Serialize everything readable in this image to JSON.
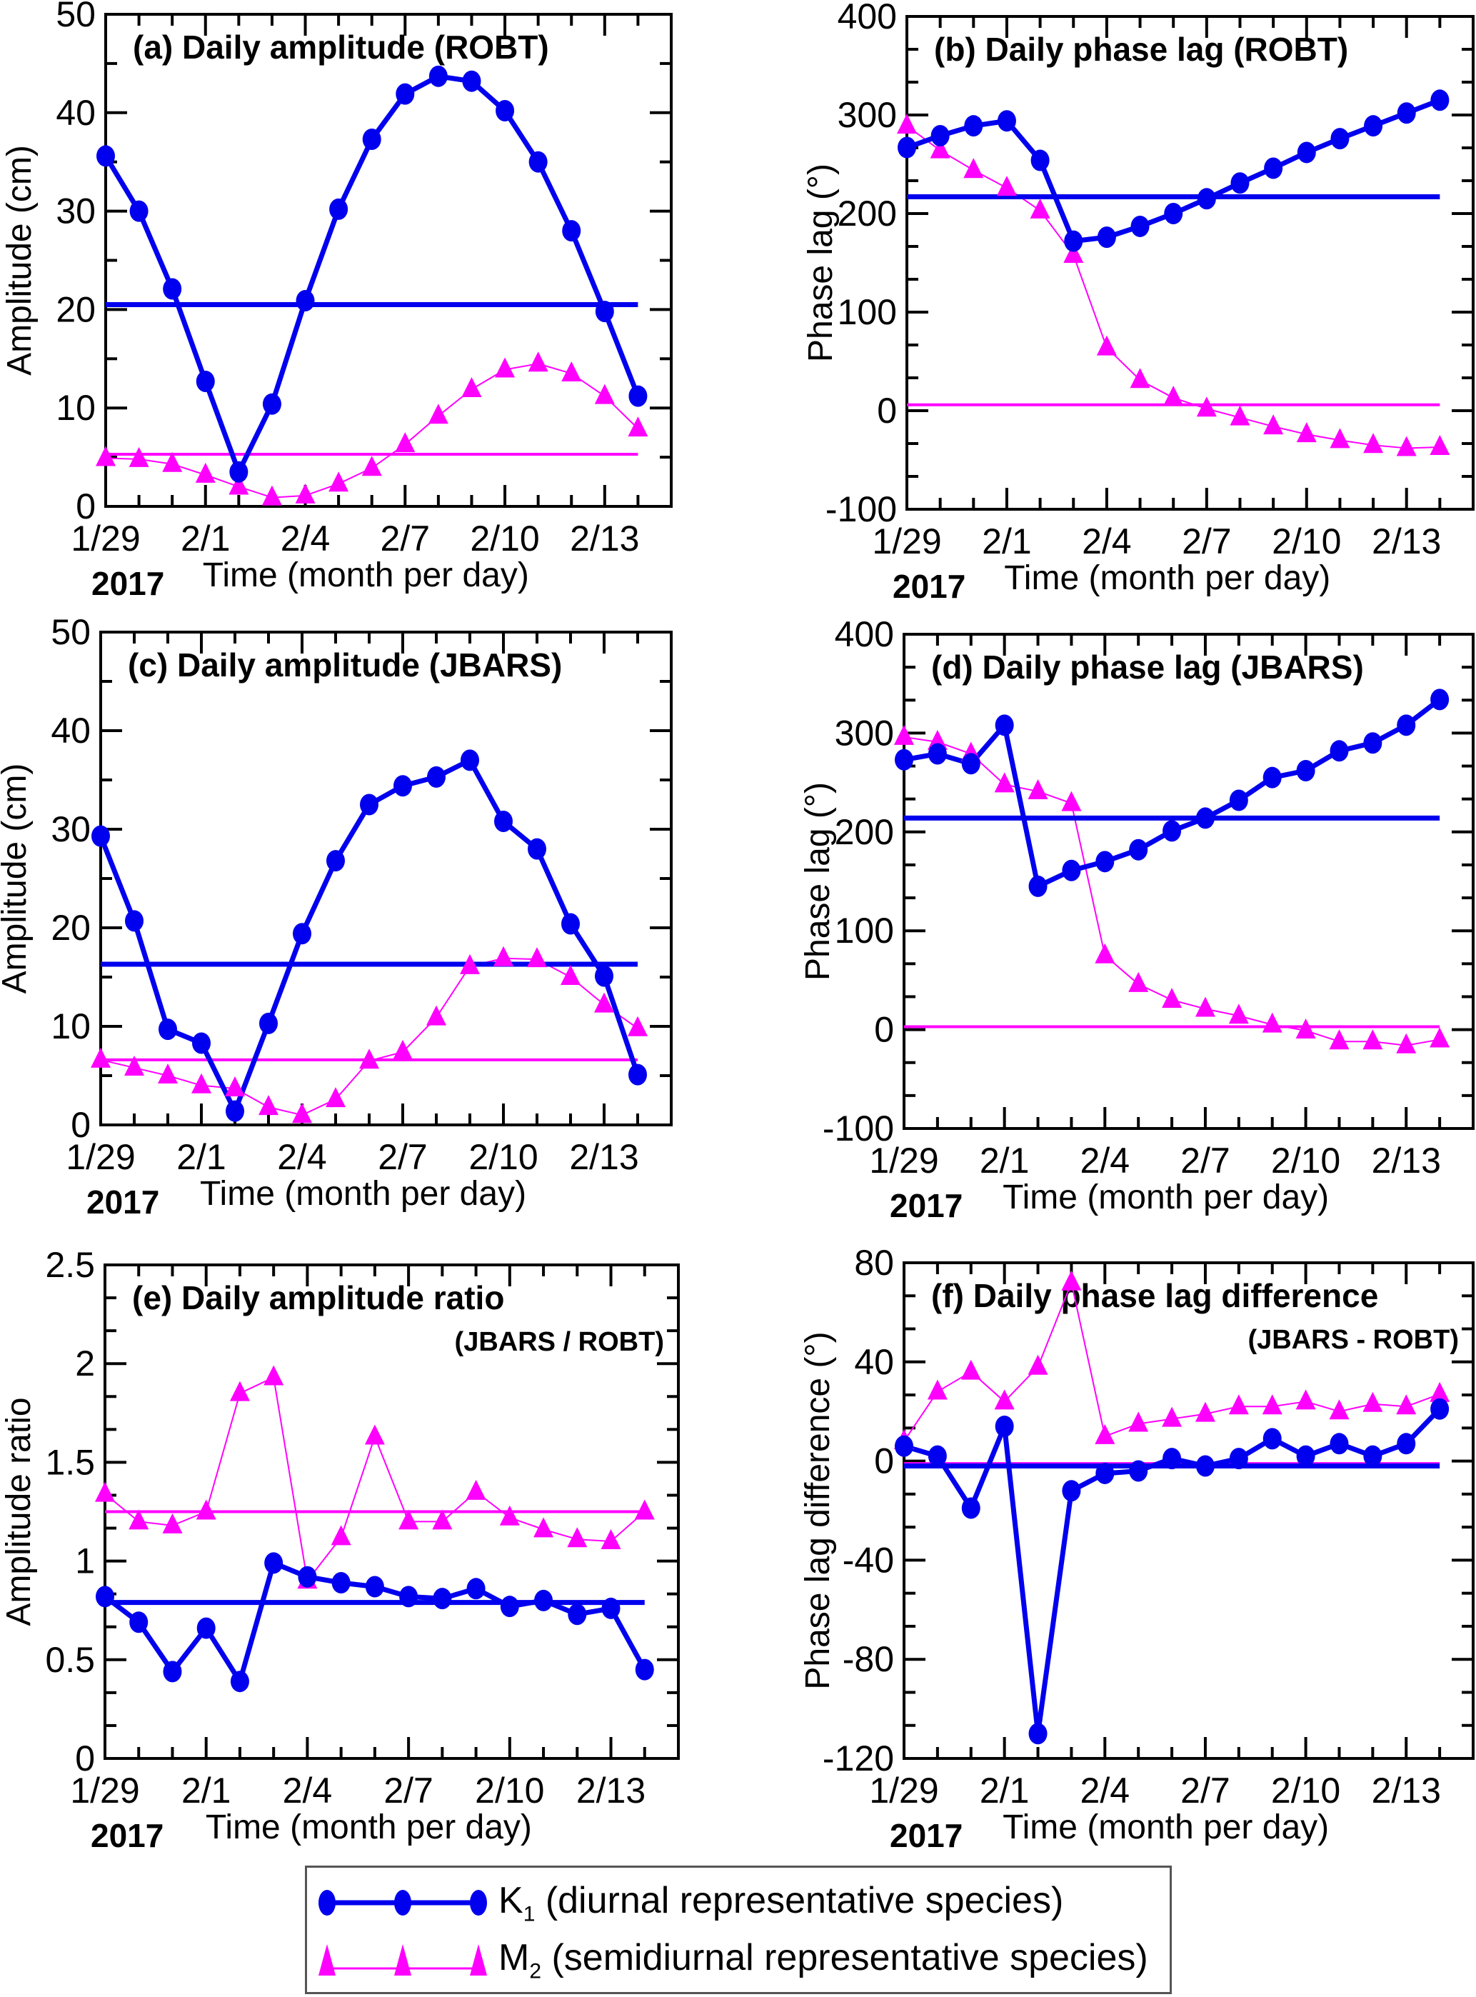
{
  "figure": {
    "x_tick_labels": [
      "1/29",
      "2/1",
      "2/4",
      "2/7",
      "2/10",
      "2/13"
    ],
    "x_label": "Time (month per day)",
    "year_label": "2017",
    "colors": {
      "K1": "#0000ee",
      "M2": "#ff00ff"
    }
  },
  "legend": {
    "items": [
      {
        "key": "K1",
        "symbol": "K",
        "subscript": "1",
        "label": " (diurnal representative species)",
        "marker": "circle",
        "color": "#0000ee"
      },
      {
        "key": "M2",
        "symbol": "M",
        "subscript": "2",
        "label": " (semidiurnal representative species)",
        "marker": "triangle",
        "color": "#ff00ff"
      }
    ]
  },
  "chart_data": [
    {
      "id": "a",
      "type": "line",
      "title": "(a) Daily amplitude (ROBT)",
      "subtitle": "",
      "xlabel": "Time (month per day)",
      "ylabel": "Amplitude (cm)",
      "ylim": [
        0,
        50
      ],
      "y_ticks": [
        0,
        10,
        20,
        30,
        40,
        50
      ],
      "y_minor_step": 5,
      "x": [
        "1/29",
        "1/30",
        "1/31",
        "2/1",
        "2/2",
        "2/3",
        "2/4",
        "2/5",
        "2/6",
        "2/7",
        "2/8",
        "2/9",
        "2/10",
        "2/11",
        "2/12",
        "2/13",
        "2/14"
      ],
      "series": [
        {
          "name": "K1",
          "values": [
            35.6,
            30.0,
            22.1,
            12.7,
            3.5,
            10.4,
            20.9,
            30.2,
            37.3,
            41.9,
            43.7,
            43.2,
            40.2,
            35.0,
            28.0,
            19.8,
            11.2
          ],
          "mean": 20.5
        },
        {
          "name": "M2",
          "values": [
            4.9,
            4.8,
            4.3,
            3.2,
            2.0,
            0.9,
            1.1,
            2.3,
            3.9,
            6.3,
            9.2,
            11.9,
            13.9,
            14.5,
            13.5,
            11.2,
            7.9
          ],
          "mean": 5.3
        }
      ]
    },
    {
      "id": "b",
      "type": "line",
      "title": "(b) Daily phase lag (ROBT)",
      "subtitle": "",
      "xlabel": "Time (month per day)",
      "ylabel": "Phase lag (°)",
      "ylim": [
        -100,
        400
      ],
      "y_ticks": [
        -100,
        0,
        100,
        200,
        300,
        400
      ],
      "y_minor_step": 33.333,
      "x": [
        "1/29",
        "1/30",
        "1/31",
        "2/1",
        "2/2",
        "2/3",
        "2/4",
        "2/5",
        "2/6",
        "2/7",
        "2/8",
        "2/9",
        "2/10",
        "2/11",
        "2/12",
        "2/13",
        "2/14"
      ],
      "series": [
        {
          "name": "K1",
          "values": [
            267,
            279,
            289,
            294,
            254,
            172,
            176,
            187,
            200,
            215,
            231,
            246,
            262,
            276,
            289,
            302,
            315
          ],
          "mean": 217
        },
        {
          "name": "M2",
          "values": [
            289,
            264,
            244,
            226,
            203,
            158,
            64,
            31,
            13,
            2,
            -7,
            -16,
            -24,
            -30,
            -35,
            -38,
            -37
          ],
          "mean": 6
        }
      ]
    },
    {
      "id": "c",
      "type": "line",
      "title": "(c) Daily amplitude (JBARS)",
      "subtitle": "",
      "xlabel": "Time (month per day)",
      "ylabel": "Amplitude (cm)",
      "ylim": [
        0,
        50
      ],
      "y_ticks": [
        0,
        10,
        20,
        30,
        40,
        50
      ],
      "y_minor_step": 5,
      "x": [
        "1/29",
        "1/30",
        "1/31",
        "2/1",
        "2/2",
        "2/3",
        "2/4",
        "2/5",
        "2/6",
        "2/7",
        "2/8",
        "2/9",
        "2/10",
        "2/11",
        "2/12",
        "2/13",
        "2/14"
      ],
      "series": [
        {
          "name": "K1",
          "values": [
            29.3,
            20.7,
            9.7,
            8.3,
            1.4,
            10.3,
            19.4,
            26.8,
            32.5,
            34.4,
            35.3,
            37.0,
            30.8,
            28.0,
            20.4,
            15.1,
            5.1
          ],
          "mean": 16.3
        },
        {
          "name": "M2",
          "values": [
            6.6,
            5.8,
            5.0,
            4.0,
            3.7,
            1.8,
            1.0,
            2.6,
            6.5,
            7.4,
            10.9,
            16.1,
            16.9,
            16.8,
            15.0,
            12.2,
            9.8
          ],
          "mean": 6.6
        }
      ]
    },
    {
      "id": "d",
      "type": "line",
      "title": "(d) Daily phase lag (JBARS)",
      "subtitle": "",
      "xlabel": "Time (month per day)",
      "ylabel": "Phase lag (°)",
      "ylim": [
        -100,
        400
      ],
      "y_ticks": [
        -100,
        0,
        100,
        200,
        300,
        400
      ],
      "y_minor_step": 33.333,
      "x": [
        "1/29",
        "1/30",
        "1/31",
        "2/1",
        "2/2",
        "2/3",
        "2/4",
        "2/5",
        "2/6",
        "2/7",
        "2/8",
        "2/9",
        "2/10",
        "2/11",
        "2/12",
        "2/13",
        "2/14"
      ],
      "series": [
        {
          "name": "K1",
          "values": [
            273,
            279,
            269,
            308,
            145,
            161,
            170,
            182,
            201,
            214,
            232,
            255,
            262,
            282,
            290,
            308,
            334
          ],
          "mean": 214
        },
        {
          "name": "M2",
          "values": [
            296,
            291,
            279,
            248,
            241,
            229,
            75,
            46,
            30,
            21,
            14,
            5,
            -1,
            -12,
            -12,
            -16,
            -10
          ],
          "mean": 3
        }
      ]
    },
    {
      "id": "e",
      "type": "line",
      "title": "(e) Daily amplitude ratio",
      "subtitle": "(JBARS / ROBT)",
      "xlabel": "Time (month per day)",
      "ylabel": "Amplitude ratio",
      "ylim": [
        0,
        2.5
      ],
      "y_ticks": [
        0,
        0.5,
        1,
        1.5,
        2,
        2.5
      ],
      "y_tick_labels": [
        "0",
        "0.5",
        "1",
        "1.5",
        "2",
        "2.5"
      ],
      "y_minor_step": 0.1667,
      "x": [
        "1/29",
        "1/30",
        "1/31",
        "2/1",
        "2/2",
        "2/3",
        "2/4",
        "2/5",
        "2/6",
        "2/7",
        "2/8",
        "2/9",
        "2/10",
        "2/11",
        "2/12",
        "2/13",
        "2/14"
      ],
      "series": [
        {
          "name": "K1",
          "values": [
            0.82,
            0.69,
            0.44,
            0.66,
            0.39,
            0.99,
            0.92,
            0.89,
            0.87,
            0.82,
            0.81,
            0.86,
            0.77,
            0.8,
            0.73,
            0.76,
            0.45
          ],
          "mean": 0.79
        },
        {
          "name": "M2",
          "values": [
            1.34,
            1.2,
            1.18,
            1.25,
            1.85,
            1.93,
            0.9,
            1.12,
            1.63,
            1.2,
            1.2,
            1.35,
            1.22,
            1.16,
            1.11,
            1.1,
            1.25
          ],
          "mean": 1.25
        }
      ]
    },
    {
      "id": "f",
      "type": "line",
      "title": "(f) Daily phase lag difference",
      "subtitle": "(JBARS - ROBT)",
      "xlabel": "Time (month per day)",
      "ylabel": "Phase lag difference (°)",
      "ylim": [
        -120,
        80
      ],
      "y_ticks": [
        -120,
        -80,
        -40,
        0,
        40,
        80
      ],
      "y_minor_step": 13.333,
      "x": [
        "1/29",
        "1/30",
        "1/31",
        "2/1",
        "2/2",
        "2/3",
        "2/4",
        "2/5",
        "2/6",
        "2/7",
        "2/8",
        "2/9",
        "2/10",
        "2/11",
        "2/12",
        "2/13",
        "2/14"
      ],
      "series": [
        {
          "name": "K1",
          "values": [
            6,
            2,
            -19,
            14,
            -110,
            -12,
            -5,
            -4,
            1,
            -2,
            1,
            9,
            2,
            7,
            2,
            7,
            21
          ],
          "mean": -2
        },
        {
          "name": "M2",
          "values": [
            8,
            28,
            36,
            24,
            38,
            72,
            10,
            15,
            17,
            19,
            22,
            22,
            24,
            20,
            23,
            22,
            27
          ],
          "mean": -1
        }
      ]
    }
  ]
}
